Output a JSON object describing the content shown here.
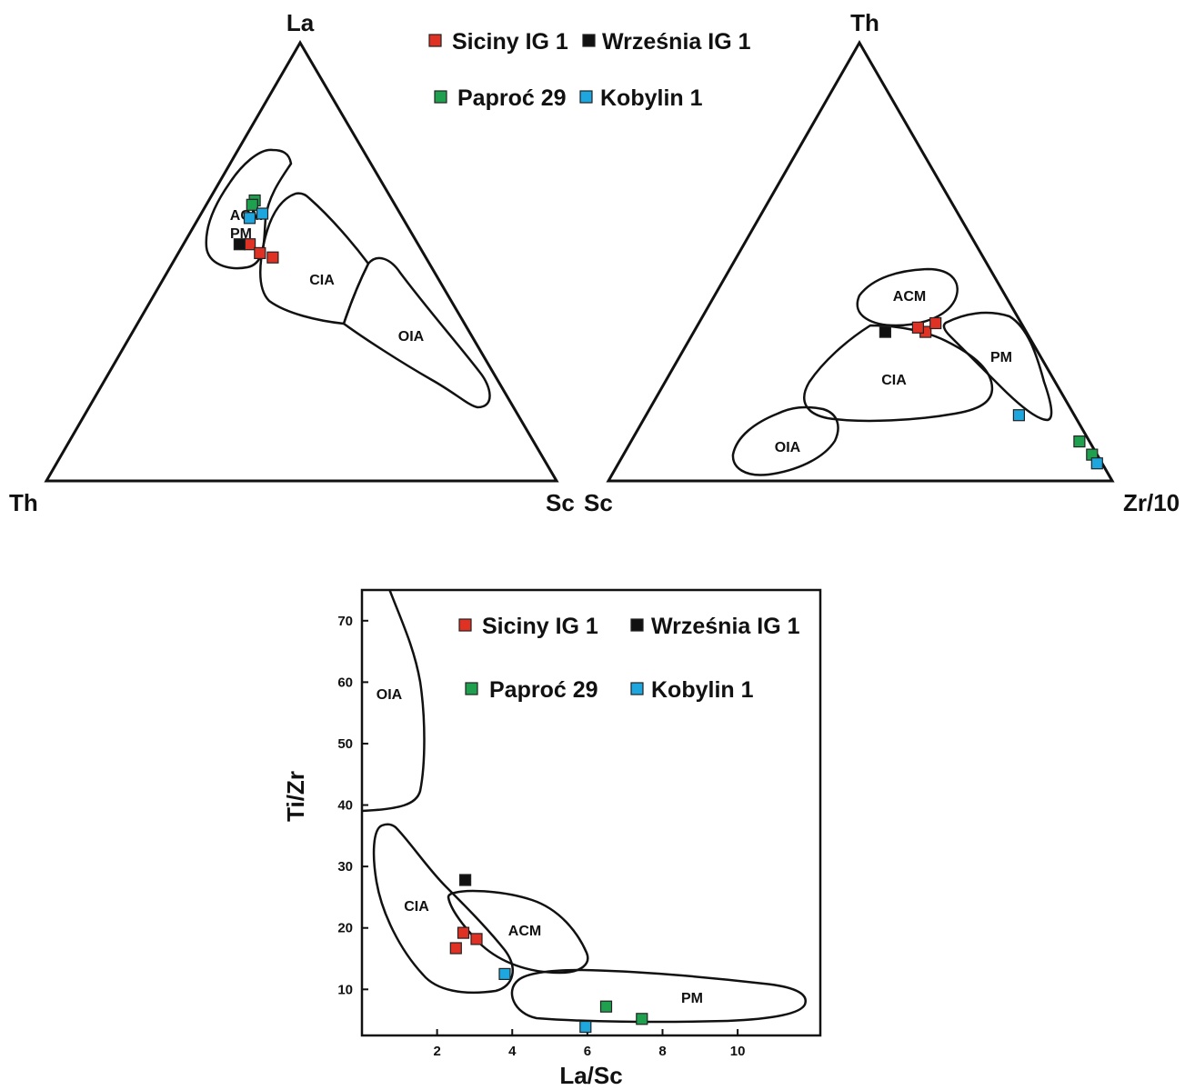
{
  "colors": {
    "Siciny IG 1": "#e03125",
    "Września IG 1": "#111111",
    "Paproć 29": "#1fa04f",
    "Kobylin 1": "#1ea7df"
  },
  "legend": {
    "series": [
      "Siciny IG 1",
      "Września IG 1",
      "Paproć 29",
      "Kobylin 1"
    ]
  },
  "chart_data": [
    {
      "type": "scatter",
      "subtype": "ternary",
      "apex_labels": {
        "top": "La",
        "left": "Th",
        "right": "Sc"
      },
      "fields": [
        {
          "label": "ACM"
        },
        {
          "label": "PM"
        },
        {
          "label": "CIA"
        },
        {
          "label": "OIA"
        }
      ],
      "series": [
        {
          "name": "Siciny IG 1",
          "points": [
            [
              0.54,
              0.33
            ],
            [
              0.52,
              0.32
            ],
            [
              0.51,
              0.3
            ]
          ]
        },
        {
          "name": "Września IG 1",
          "points": [
            [
              0.54,
              0.35
            ]
          ]
        },
        {
          "name": "Paproć 29",
          "points": [
            [
              0.64,
              0.27
            ],
            [
              0.63,
              0.28
            ]
          ]
        },
        {
          "name": "Kobylin 1",
          "points": [
            [
              0.61,
              0.27
            ],
            [
              0.6,
              0.3
            ]
          ]
        }
      ],
      "point_format": "[La, Th] fractions (Sc = 1 - La - Th)"
    },
    {
      "type": "scatter",
      "subtype": "ternary",
      "apex_labels": {
        "top": "Th",
        "left": "Sc",
        "right": "Zr/10"
      },
      "fields": [
        {
          "label": "ACM"
        },
        {
          "label": "CIA"
        },
        {
          "label": "OIA"
        },
        {
          "label": "PM"
        }
      ],
      "series": [
        {
          "name": "Siciny IG 1",
          "points": [
            [
              0.34,
              0.2
            ],
            [
              0.35,
              0.21
            ],
            [
              0.36,
              0.17
            ]
          ]
        },
        {
          "name": "Września IG 1",
          "points": [
            [
              0.34,
              0.28
            ]
          ]
        },
        {
          "name": "Paproć 29",
          "points": [
            [
              0.09,
              0.02
            ],
            [
              0.06,
              0.01
            ]
          ]
        },
        {
          "name": "Kobylin 1",
          "points": [
            [
              0.15,
              0.11
            ],
            [
              0.04,
              0.01
            ]
          ]
        }
      ],
      "point_format": "[Th, Sc] fractions (Zr/10 = 1 - Th - Sc)"
    },
    {
      "type": "scatter",
      "xlabel": "La/Sc",
      "ylabel": "Ti/Zr",
      "xlim": [
        0,
        12.2
      ],
      "ylim": [
        2.5,
        75
      ],
      "xticks": [
        2,
        4,
        6,
        8,
        10
      ],
      "yticks": [
        10,
        20,
        30,
        40,
        50,
        60,
        70
      ],
      "fields": [
        {
          "label": "OIA"
        },
        {
          "label": "CIA"
        },
        {
          "label": "ACM"
        },
        {
          "label": "PM"
        }
      ],
      "series": [
        {
          "name": "Siciny IG 1",
          "points": [
            [
              2.7,
              19.2
            ],
            [
              3.05,
              18.2
            ],
            [
              2.5,
              16.7
            ]
          ]
        },
        {
          "name": "Września IG 1",
          "points": [
            [
              2.75,
              27.8
            ]
          ]
        },
        {
          "name": "Paproć 29",
          "points": [
            [
              6.5,
              7.2
            ],
            [
              7.45,
              5.2
            ]
          ]
        },
        {
          "name": "Kobylin 1",
          "points": [
            [
              3.8,
              12.5
            ],
            [
              5.95,
              3.9
            ]
          ]
        }
      ]
    }
  ]
}
